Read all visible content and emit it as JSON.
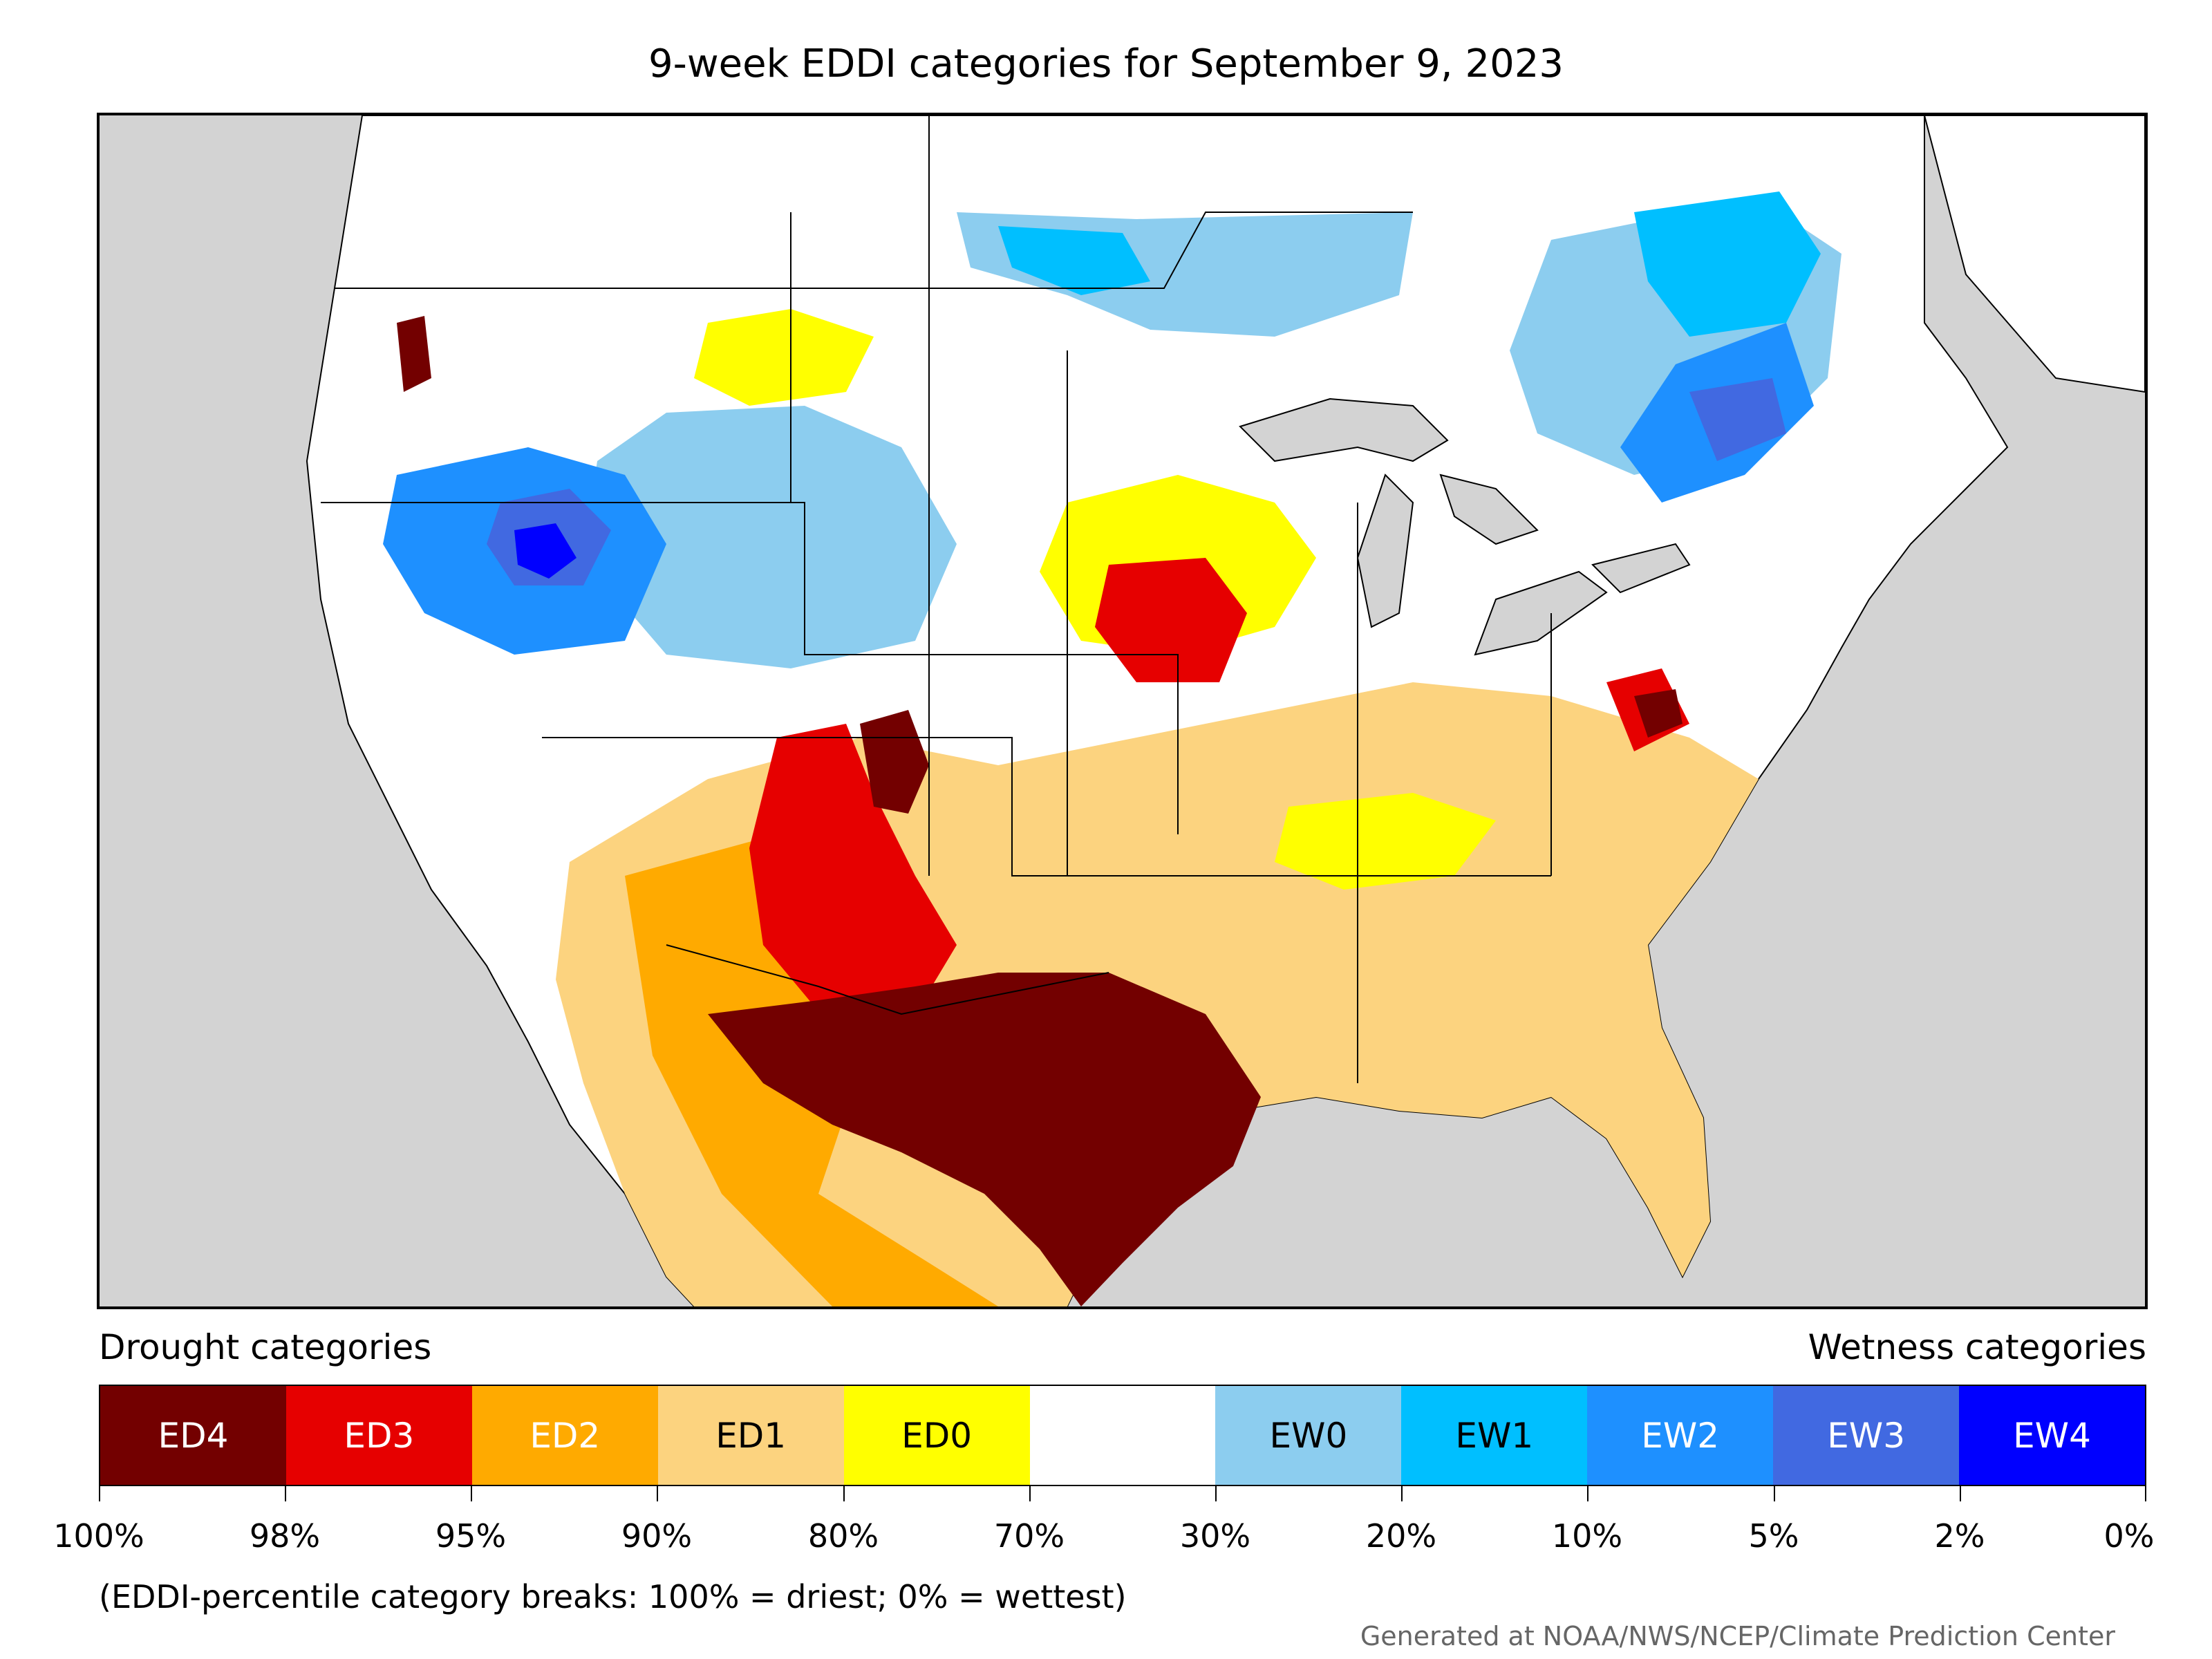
{
  "title": "9-week EDDI categories for September 9, 2023",
  "legend": {
    "drought_label": "Drought categories",
    "wetness_label": "Wetness categories",
    "categories": [
      {
        "label": "ED4",
        "color": "#730000",
        "text_color": "#ffffff"
      },
      {
        "label": "ED3",
        "color": "#e60000",
        "text_color": "#ffffff"
      },
      {
        "label": "ED2",
        "color": "#ffaa00",
        "text_color": "#ffffff"
      },
      {
        "label": "ED1",
        "color": "#fcd37f",
        "text_color": "#000000"
      },
      {
        "label": "ED0",
        "color": "#ffff00",
        "text_color": "#000000"
      },
      {
        "label": "",
        "color": "#ffffff",
        "text_color": "#000000"
      },
      {
        "label": "EW0",
        "color": "#8ccdef",
        "text_color": "#000000"
      },
      {
        "label": "EW1",
        "color": "#00bfff",
        "text_color": "#000000"
      },
      {
        "label": "EW2",
        "color": "#1e90ff",
        "text_color": "#ffffff"
      },
      {
        "label": "EW3",
        "color": "#4169e1",
        "text_color": "#ffffff"
      },
      {
        "label": "EW4",
        "color": "#0000ff",
        "text_color": "#ffffff"
      }
    ],
    "tick_labels": [
      "100%",
      "98%",
      "95%",
      "90%",
      "80%",
      "70%",
      "30%",
      "20%",
      "10%",
      "5%",
      "2%",
      "0%"
    ]
  },
  "note": "(EDDI-percentile category breaks: 100% = driest; 0% = wettest)",
  "credit": "Generated at NOAA/NWS/NCEP/Climate Prediction Center",
  "colors": {
    "land_outside": "#d3d3d3",
    "border": "#000000"
  }
}
